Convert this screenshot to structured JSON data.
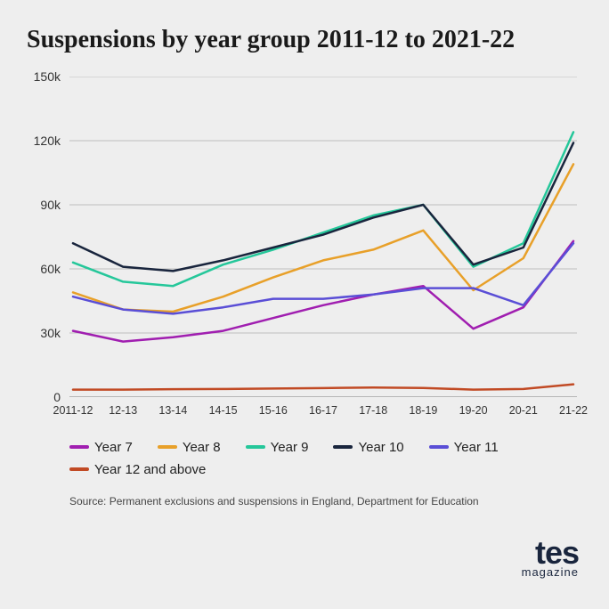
{
  "title": "Suspensions by year group 2011-12 to 2021-22",
  "source": "Source: Permanent exclusions and suspensions in England, Department for Education",
  "logo": {
    "main": "tes",
    "sub": "magazine"
  },
  "chart": {
    "type": "line",
    "background_color": "#eeeeee",
    "grid_color": "#bdbdbd",
    "axis_color": "#808080",
    "line_width": 2.5,
    "ylim": [
      0,
      150000
    ],
    "ytick_step": 30000,
    "ytick_labels": [
      "0",
      "30k",
      "60k",
      "90k",
      "120k",
      "150k"
    ],
    "categories": [
      "2011-12",
      "12-13",
      "13-14",
      "14-15",
      "15-16",
      "16-17",
      "17-18",
      "18-19",
      "19-20",
      "20-21",
      "21-22"
    ],
    "label_fontsize": 13,
    "series": [
      {
        "name": "Year 7",
        "color": "#a01eb0",
        "values": [
          31000,
          26000,
          28000,
          31000,
          37000,
          43000,
          48000,
          52000,
          32000,
          42000,
          73000
        ]
      },
      {
        "name": "Year 8",
        "color": "#e8a029",
        "values": [
          49000,
          41000,
          40000,
          47000,
          56000,
          64000,
          69000,
          78000,
          50000,
          65000,
          109000
        ]
      },
      {
        "name": "Year 9",
        "color": "#25c79a",
        "values": [
          63000,
          54000,
          52000,
          62000,
          69000,
          77000,
          85000,
          90000,
          61000,
          72000,
          124000
        ]
      },
      {
        "name": "Year 10",
        "color": "#19253d",
        "values": [
          72000,
          61000,
          59000,
          64000,
          70000,
          76000,
          84000,
          90000,
          62000,
          70000,
          119000
        ]
      },
      {
        "name": "Year 11",
        "color": "#5a4ed6",
        "values": [
          47000,
          41000,
          39000,
          42000,
          46000,
          46000,
          48000,
          51000,
          51000,
          43000,
          72000
        ]
      },
      {
        "name": "Year 12 and above",
        "color": "#c14a24",
        "values": [
          3500,
          3500,
          3700,
          3800,
          4000,
          4200,
          4500,
          4300,
          3500,
          3800,
          6000
        ]
      }
    ]
  }
}
